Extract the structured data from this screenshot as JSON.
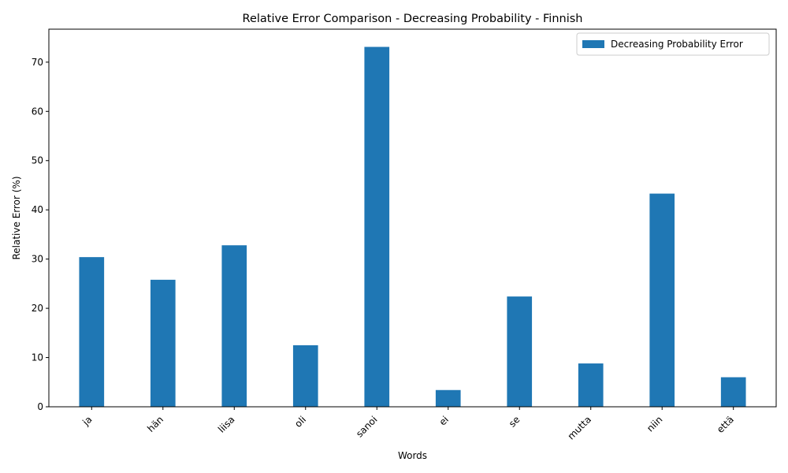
{
  "chart_data": {
    "type": "bar",
    "title": "Relative Error Comparison - Decreasing Probability - Finnish",
    "xlabel": "Words",
    "ylabel": "Relative Error (%)",
    "categories": [
      "ja",
      "hän",
      "liisa",
      "oli",
      "sanoi",
      "ei",
      "se",
      "mutta",
      "niin",
      "että"
    ],
    "series": [
      {
        "name": "Decreasing Probability Error",
        "color": "#1f77b4",
        "values": [
          30.4,
          25.8,
          32.8,
          12.5,
          73.1,
          3.4,
          22.4,
          8.8,
          43.3,
          6.0
        ]
      }
    ],
    "ylim": [
      0,
      76.7
    ],
    "yticks": [
      0,
      10,
      20,
      30,
      40,
      50,
      60,
      70
    ],
    "legend_position": "top-right",
    "grid": false,
    "xtick_rotation": 45
  }
}
